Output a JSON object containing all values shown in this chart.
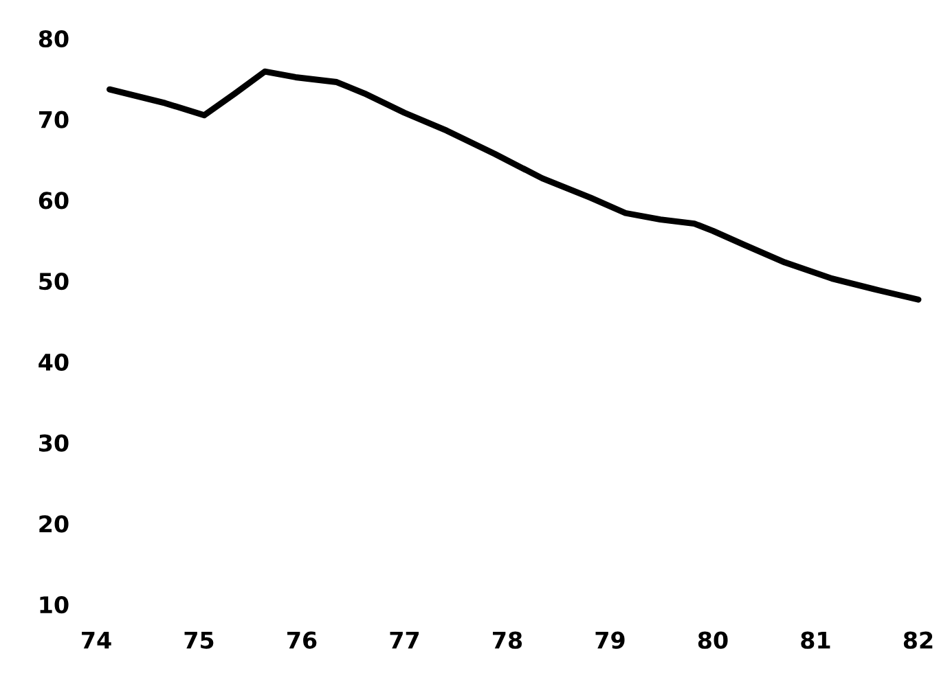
{
  "chart_data": {
    "type": "line",
    "xlim": [
      74,
      82
    ],
    "ylim": [
      10,
      80
    ],
    "xticks": [
      74,
      75,
      76,
      77,
      78,
      79,
      80,
      81,
      82
    ],
    "yticks": [
      10,
      20,
      30,
      40,
      50,
      60,
      70,
      80
    ],
    "grid": false,
    "marker": "none",
    "line_style": "solid",
    "series": [
      {
        "color": "#000000",
        "x": [
          74.13,
          74.67,
          75.05,
          75.35,
          75.64,
          75.94,
          76.34,
          76.61,
          77.0,
          77.41,
          77.88,
          78.34,
          78.81,
          79.15,
          79.49,
          79.82,
          80.0,
          80.3,
          80.7,
          81.16,
          81.63,
          82.0
        ],
        "values": [
          73.7,
          72.0,
          70.5,
          73.2,
          75.9,
          75.2,
          74.6,
          73.2,
          70.8,
          68.6,
          65.7,
          62.7,
          60.3,
          58.4,
          57.6,
          57.1,
          56.2,
          54.5,
          52.3,
          50.3,
          48.8,
          47.7
        ]
      }
    ]
  }
}
